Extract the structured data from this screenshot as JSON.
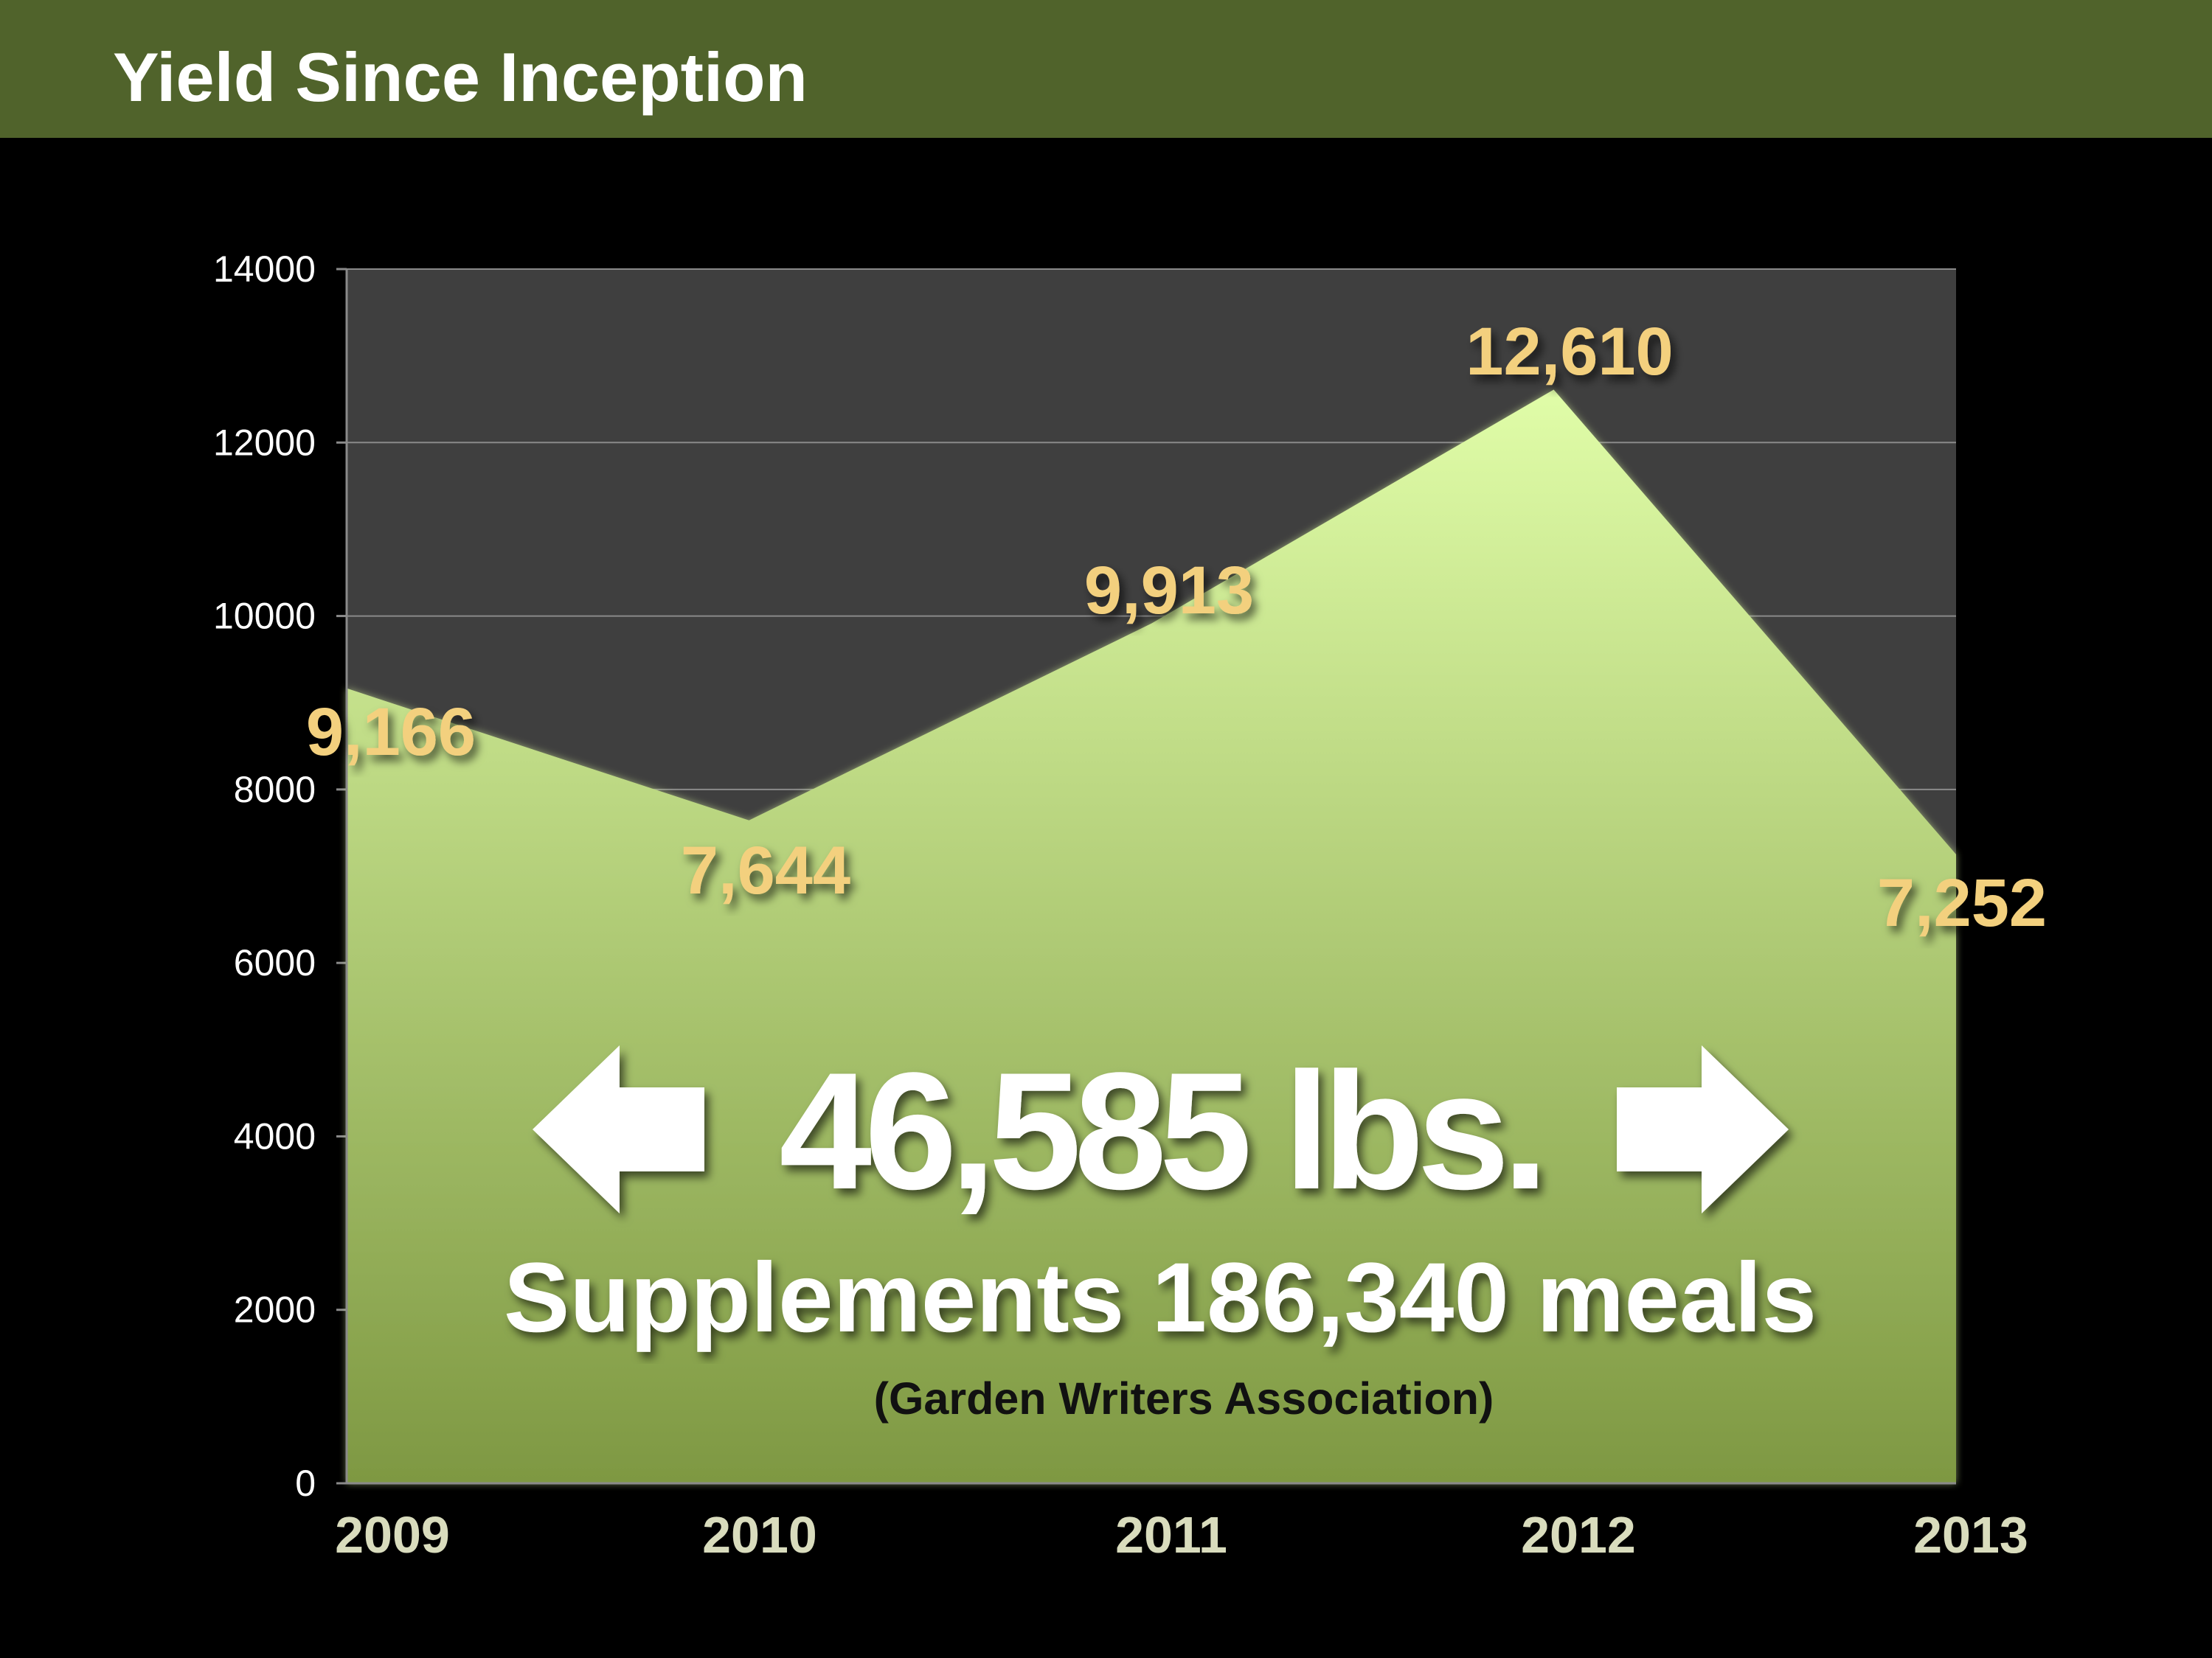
{
  "slide": {
    "title": "Yield Since Inception"
  },
  "chart_data": {
    "type": "area",
    "title": "",
    "xlabel": "",
    "ylabel": "",
    "categories": [
      "2009",
      "2010",
      "2011",
      "2012",
      "2013"
    ],
    "series": [
      {
        "values": [
          9166,
          7644,
          9913,
          12610,
          7252
        ]
      }
    ],
    "data_labels": [
      "9,166",
      "7,644",
      "9,913",
      "12,610",
      "7,252"
    ],
    "ylim": [
      0,
      14000
    ],
    "yticks": [
      0,
      2000,
      4000,
      6000,
      8000,
      10000,
      12000,
      14000
    ],
    "grid": true,
    "legend": "none",
    "annotations": {
      "total": "46,585 lbs.",
      "meals": "Supplements 186,340 meals",
      "source": "(Garden Writers Association)"
    },
    "colors": {
      "plot_background": "#3f3f3f",
      "area_top": "#e0fda8",
      "area_bottom": "#7e9842",
      "data_label": "#f3d07e",
      "category_label": "#d9dcbd",
      "axis_text": "#ffffff",
      "gridline": "#8a8a8a"
    }
  }
}
